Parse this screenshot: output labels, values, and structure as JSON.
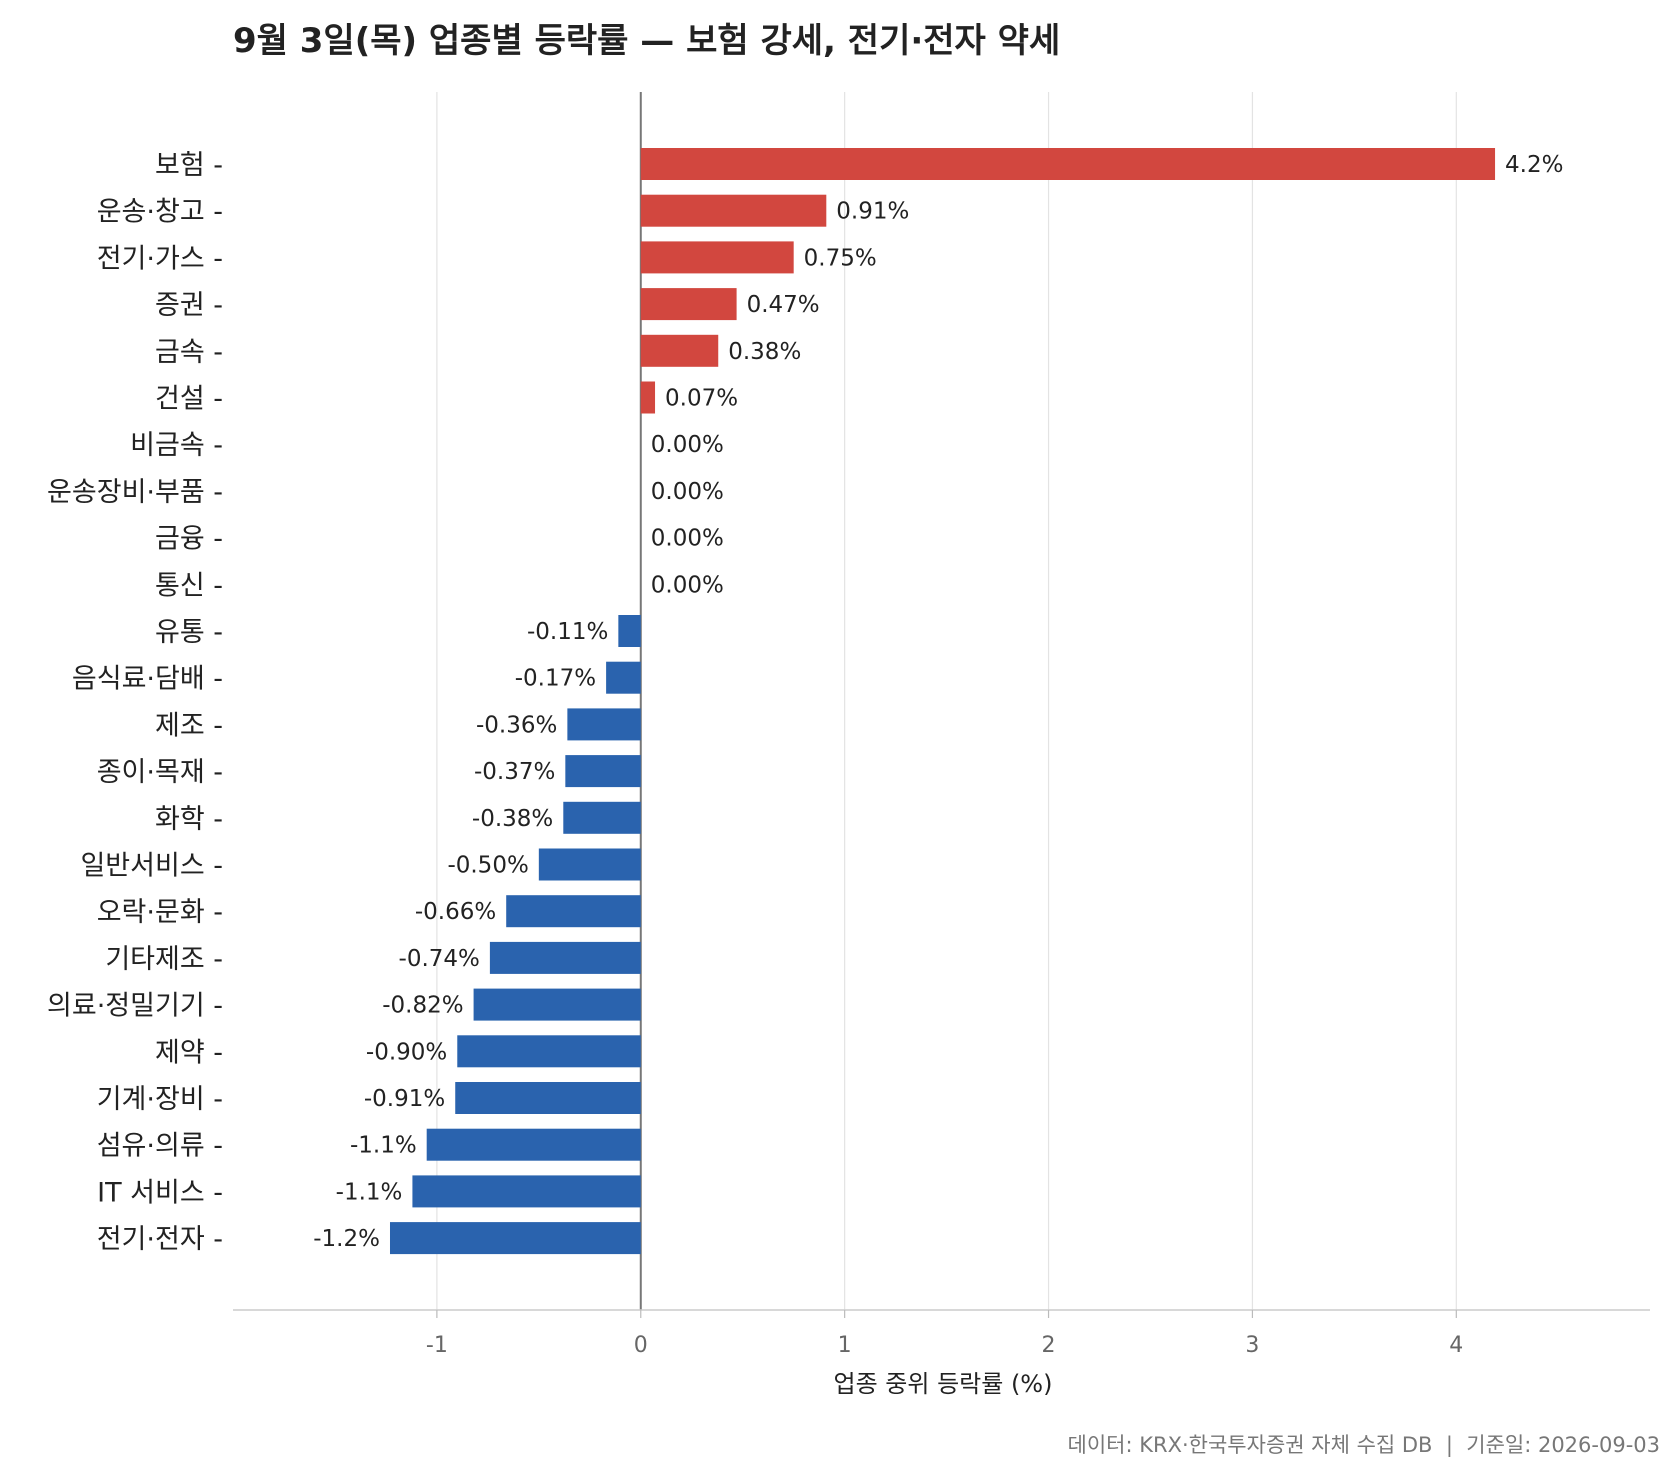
{
  "chart_data": {
    "type": "bar",
    "orientation": "horizontal",
    "title": "9월 3일(목) 업종별 등락률 — 보험 강세, 전기·전자 약세",
    "xlabel": "업종 중위 등락률 (%)",
    "ylabel": "",
    "caption": "데이터: KRX·한국투자증권 자체 수집 DB  |  기준일: 2026-09-03",
    "xlim": [
      -2.0,
      4.95
    ],
    "xticks": [
      -1,
      0,
      1,
      2,
      3,
      4
    ],
    "grid": "vertical",
    "colors": {
      "positive": "#d2473f",
      "negative": "#2a63ae",
      "zero_line": "#777777",
      "grid": "#e3e3e3"
    },
    "categories": [
      "보험",
      "운송·창고",
      "전기·가스",
      "증권",
      "금속",
      "건설",
      "비금속",
      "운송장비·부품",
      "금융",
      "통신",
      "유통",
      "음식료·담배",
      "제조",
      "종이·목재",
      "화학",
      "일반서비스",
      "오락·문화",
      "기타제조",
      "의료·정밀기기",
      "제약",
      "기계·장비",
      "섬유·의류",
      "IT 서비스",
      "전기·전자"
    ],
    "values": [
      4.19,
      0.91,
      0.75,
      0.47,
      0.38,
      0.07,
      0.0,
      0.0,
      0.0,
      0.0,
      -0.11,
      -0.17,
      -0.36,
      -0.37,
      -0.38,
      -0.5,
      -0.66,
      -0.74,
      -0.82,
      -0.9,
      -0.91,
      -1.05,
      -1.12,
      -1.23
    ],
    "data_labels": [
      "4.2%",
      "0.91%",
      "0.75%",
      "0.47%",
      "0.38%",
      "0.07%",
      "0.00%",
      "0.00%",
      "0.00%",
      "0.00%",
      "-0.11%",
      "-0.17%",
      "-0.36%",
      "-0.37%",
      "-0.38%",
      "-0.50%",
      "-0.66%",
      "-0.74%",
      "-0.82%",
      "-0.90%",
      "-0.91%",
      "-1.1%",
      "-1.1%",
      "-1.2%"
    ]
  }
}
